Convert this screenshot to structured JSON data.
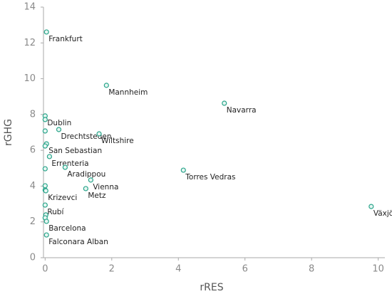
{
  "chart_data": {
    "type": "scatter",
    "xlabel": "rRES",
    "ylabel": "rGHG",
    "color": "#2aa58b",
    "xlim": [
      -0.05,
      10.2
    ],
    "ylim": [
      0,
      14
    ],
    "xticks": [
      0,
      2,
      4,
      6,
      8,
      10
    ],
    "yticks": [
      0,
      2,
      4,
      6,
      8,
      10,
      12,
      14
    ],
    "x": [
      0.04,
      1.84,
      5.38,
      0,
      0,
      0,
      0.41,
      1.62,
      0.04,
      0,
      0.13,
      0,
      0.6,
      4.15,
      1.37,
      1.22,
      0,
      0,
      0.02,
      0,
      0.02,
      0,
      0.04,
      0.04,
      9.79
    ],
    "values": [
      12.61,
      9.63,
      8.63,
      7.92,
      7.72,
      7.08,
      7.16,
      6.92,
      6.36,
      6.24,
      5.65,
      4.97,
      5.05,
      4.89,
      4.34,
      3.86,
      4.02,
      3.78,
      3.74,
      2.94,
      2.39,
      2.23,
      2.03,
      1.27,
      2.86
    ],
    "labels": [
      "Frankfurt",
      "Mannheim",
      "Navarra",
      "Dublin",
      null,
      null,
      "Drechtsteden",
      "Wiltshire",
      "San Sebastian",
      null,
      "Errenteria",
      null,
      "Aradippou",
      "Torres Vedras",
      "Vienna",
      "Metz",
      null,
      null,
      "Krizevci",
      "Rubí",
      null,
      null,
      "Barcelona",
      "Falconara Alban",
      "Växjö"
    ]
  }
}
